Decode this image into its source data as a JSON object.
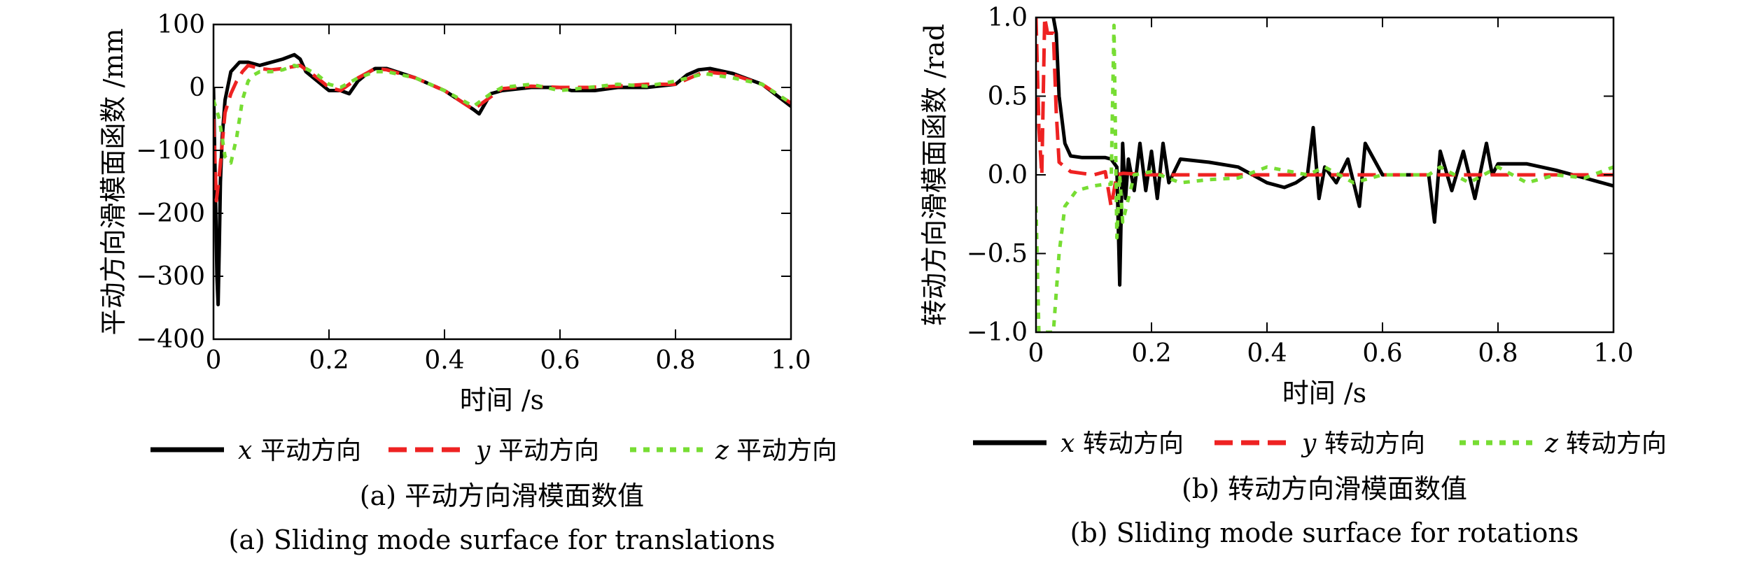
{
  "chart_data": [
    {
      "type": "line",
      "caption_cn": "(a) 平动方向滑模面数值",
      "caption_en": "(a) Sliding mode surface for translations",
      "xlabel": "时间 /s",
      "ylabel": "平动方向滑模面函数 /mm",
      "xlim": [
        0,
        1.0
      ],
      "ylim": [
        -400,
        100
      ],
      "xticks": [
        0,
        0.2,
        0.4,
        0.6,
        0.8,
        1.0
      ],
      "xtick_labels": [
        "0",
        "0.2",
        "0.4",
        "0.6",
        "0.8",
        "1.0"
      ],
      "yticks": [
        -400,
        -300,
        -200,
        -100,
        0,
        100
      ],
      "ytick_labels": [
        "−400",
        "−300",
        "−200",
        "−100",
        "0",
        "100"
      ],
      "grid": false,
      "legend_position": "bottom",
      "series": [
        {
          "name": "平动方向",
          "var": "x",
          "color": "#000000",
          "style": "solid",
          "x": [
            0,
            0.003,
            0.006,
            0.008,
            0.01,
            0.012,
            0.015,
            0.02,
            0.03,
            0.045,
            0.06,
            0.08,
            0.1,
            0.12,
            0.14,
            0.15,
            0.16,
            0.18,
            0.2,
            0.22,
            0.235,
            0.25,
            0.27,
            0.28,
            0.3,
            0.35,
            0.4,
            0.45,
            0.46,
            0.48,
            0.5,
            0.55,
            0.6,
            0.62,
            0.64,
            0.66,
            0.7,
            0.75,
            0.8,
            0.82,
            0.84,
            0.86,
            0.9,
            0.95,
            1.0
          ],
          "y": [
            0,
            -150,
            -300,
            -345,
            -250,
            -150,
            -80,
            -20,
            25,
            40,
            40,
            35,
            40,
            45,
            52,
            45,
            25,
            10,
            -5,
            -5,
            -10,
            10,
            25,
            30,
            30,
            15,
            -5,
            -35,
            -42,
            -10,
            -5,
            0,
            0,
            -5,
            -5,
            -5,
            0,
            0,
            5,
            20,
            28,
            30,
            22,
            5,
            -30
          ]
        },
        {
          "name": "平动方向",
          "var": "y",
          "color": "#ee2222",
          "style": "dashed",
          "x": [
            0,
            0.005,
            0.01,
            0.015,
            0.02,
            0.03,
            0.04,
            0.05,
            0.06,
            0.08,
            0.1,
            0.12,
            0.15,
            0.18,
            0.2,
            0.22,
            0.25,
            0.28,
            0.3,
            0.35,
            0.4,
            0.45,
            0.48,
            0.5,
            0.55,
            0.6,
            0.65,
            0.7,
            0.75,
            0.8,
            0.85,
            0.9,
            0.95,
            1.0
          ],
          "y": [
            -50,
            -180,
            -140,
            -90,
            -40,
            -10,
            10,
            25,
            35,
            30,
            28,
            30,
            35,
            15,
            0,
            -5,
            15,
            30,
            28,
            15,
            -5,
            -35,
            -15,
            -2,
            2,
            0,
            0,
            2,
            5,
            5,
            25,
            20,
            5,
            -25
          ]
        },
        {
          "name": "平动方向",
          "var": "z",
          "color": "#77dd33",
          "style": "dotted",
          "x": [
            0,
            0.01,
            0.02,
            0.03,
            0.04,
            0.05,
            0.06,
            0.07,
            0.08,
            0.1,
            0.12,
            0.14,
            0.16,
            0.18,
            0.2,
            0.22,
            0.25,
            0.28,
            0.3,
            0.35,
            0.4,
            0.45,
            0.48,
            0.5,
            0.55,
            0.6,
            0.65,
            0.7,
            0.75,
            0.8,
            0.85,
            0.9,
            0.95,
            1.0
          ],
          "y": [
            -20,
            -50,
            -110,
            -120,
            -80,
            -20,
            10,
            20,
            25,
            25,
            28,
            35,
            30,
            20,
            5,
            0,
            15,
            25,
            25,
            15,
            -5,
            -30,
            -10,
            0,
            5,
            -5,
            0,
            5,
            2,
            10,
            22,
            15,
            5,
            -25
          ]
        }
      ]
    },
    {
      "type": "line",
      "caption_cn": "(b) 转动方向滑模面数值",
      "caption_en": "(b) Sliding mode surface for rotations",
      "xlabel": "时间 /s",
      "ylabel": "转动方向滑模面函数 /rad",
      "xlim": [
        0,
        1.0
      ],
      "ylim": [
        -1.0,
        1.0
      ],
      "xticks": [
        0,
        0.2,
        0.4,
        0.6,
        0.8,
        1.0
      ],
      "xtick_labels": [
        "0",
        "0.2",
        "0.4",
        "0.6",
        "0.8",
        "1.0"
      ],
      "yticks": [
        -1.0,
        -0.5,
        0.0,
        0.5,
        1.0
      ],
      "ytick_labels": [
        "−1.0",
        "−0.5",
        "0.0",
        "0.5",
        "1.0"
      ],
      "grid": false,
      "legend_position": "bottom",
      "series": [
        {
          "name": "转动方向",
          "var": "x",
          "color": "#000000",
          "style": "solid",
          "x": [
            0.03,
            0.035,
            0.04,
            0.05,
            0.06,
            0.08,
            0.1,
            0.12,
            0.13,
            0.14,
            0.145,
            0.15,
            0.155,
            0.16,
            0.17,
            0.18,
            0.19,
            0.2,
            0.21,
            0.22,
            0.23,
            0.25,
            0.3,
            0.35,
            0.4,
            0.43,
            0.45,
            0.47,
            0.48,
            0.49,
            0.5,
            0.52,
            0.54,
            0.56,
            0.57,
            0.6,
            0.65,
            0.68,
            0.69,
            0.7,
            0.72,
            0.74,
            0.76,
            0.78,
            0.79,
            0.8,
            0.85,
            0.9,
            0.95,
            1.0
          ],
          "y": [
            1.0,
            0.9,
            0.5,
            0.2,
            0.12,
            0.11,
            0.11,
            0.11,
            0.1,
            0.05,
            -0.7,
            0.2,
            -0.15,
            0.1,
            -0.1,
            0.2,
            -0.1,
            0.15,
            -0.15,
            0.2,
            -0.05,
            0.1,
            0.08,
            0.05,
            -0.05,
            -0.08,
            -0.05,
            0.0,
            0.3,
            -0.15,
            0.05,
            -0.05,
            0.1,
            -0.2,
            0.2,
            0.0,
            0.0,
            0.0,
            -0.3,
            0.15,
            -0.1,
            0.15,
            -0.15,
            0.2,
            0.0,
            0.07,
            0.07,
            0.03,
            -0.02,
            -0.07
          ]
        },
        {
          "name": "转动方向",
          "var": "y",
          "color": "#ee2222",
          "style": "dashed",
          "x": [
            0,
            0.005,
            0.01,
            0.015,
            0.02,
            0.025,
            0.03,
            0.035,
            0.04,
            0.06,
            0.08,
            0.1,
            0.12,
            0.13,
            0.14,
            0.15,
            0.2,
            0.3,
            0.4,
            0.5,
            0.6,
            0.7,
            0.8,
            0.9,
            1.0
          ],
          "y": [
            1.0,
            0.3,
            0.0,
            1.0,
            0.9,
            0.9,
            0.9,
            0.4,
            0.08,
            0.02,
            0.01,
            0.0,
            0.02,
            -0.2,
            0.0,
            0.01,
            0.0,
            0.0,
            0.0,
            0.0,
            0.0,
            0.0,
            0.0,
            0.0,
            0.0
          ]
        },
        {
          "name": "转动方向",
          "var": "z",
          "color": "#77dd33",
          "style": "dotted",
          "x": [
            0,
            0.005,
            0.01,
            0.02,
            0.03,
            0.04,
            0.05,
            0.07,
            0.1,
            0.12,
            0.13,
            0.135,
            0.14,
            0.145,
            0.15,
            0.17,
            0.2,
            0.25,
            0.3,
            0.35,
            0.4,
            0.47,
            0.5,
            0.55,
            0.6,
            0.68,
            0.7,
            0.75,
            0.8,
            0.85,
            0.9,
            0.95,
            1.0
          ],
          "y": [
            -0.2,
            -1.0,
            -1.0,
            -1.0,
            -1.0,
            -0.5,
            -0.2,
            -0.1,
            -0.07,
            -0.06,
            -0.06,
            0.95,
            -0.4,
            0.0,
            -0.3,
            0.0,
            0.02,
            -0.05,
            -0.03,
            -0.02,
            0.05,
            0.0,
            0.05,
            -0.05,
            0.0,
            0.0,
            0.05,
            -0.05,
            0.05,
            -0.05,
            0.0,
            -0.02,
            0.05
          ]
        }
      ]
    }
  ]
}
